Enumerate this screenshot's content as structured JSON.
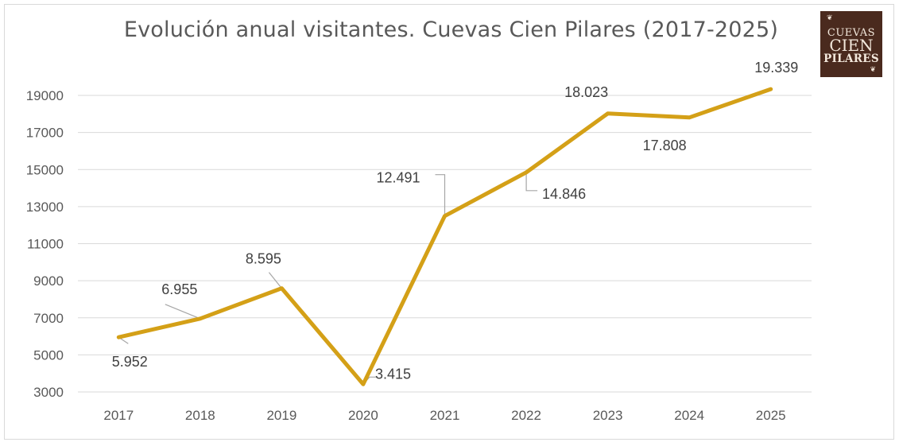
{
  "chart_data": {
    "type": "line",
    "title": "Evolución anual visitantes. Cuevas Cien Pilares (2017-2025)",
    "xlabel": "",
    "ylabel": "",
    "categories": [
      "2017",
      "2018",
      "2019",
      "2020",
      "2021",
      "2022",
      "2023",
      "2024",
      "2025"
    ],
    "series": [
      {
        "values": [
          5952,
          6955,
          8595,
          3415,
          12491,
          14846,
          18023,
          17808,
          19339
        ],
        "data_labels": [
          "5.952",
          "6.955",
          "8.595",
          "3.415",
          "12.491",
          "14.846",
          "18.023",
          "17.808",
          "19.339"
        ],
        "color": "#d4a017"
      }
    ],
    "ylim": [
      3000,
      20000
    ],
    "yticks": [
      3000,
      5000,
      7000,
      9000,
      11000,
      13000,
      15000,
      17000,
      19000
    ],
    "ytick_labels": [
      "3000",
      "5000",
      "7000",
      "9000",
      "11000",
      "13000",
      "15000",
      "17000",
      "19000"
    ],
    "grid": true,
    "legend": "none"
  },
  "logo": {
    "line1": "CUEVAS",
    "line2": "CIEN",
    "line3": "PILARES",
    "background": "#4a2a1e",
    "foreground": "#f3e8dc"
  },
  "colors": {
    "gridline": "#d9d9d9",
    "leader_line": "#a6a6a6",
    "text": "#595959"
  }
}
